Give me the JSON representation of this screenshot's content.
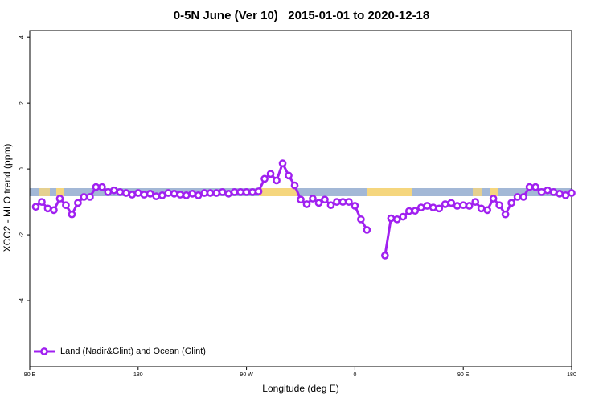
{
  "chart_data": {
    "type": "line",
    "title": "0-5N June (Ver 10)   2015-01-01 to 2020-12-18",
    "xlabel": "Longitude (deg E)",
    "ylabel": "XCO2 - MLO trend (ppm)",
    "xlim": [
      90,
      540
    ],
    "ylim": [
      -6,
      4.2
    ],
    "xticks": [
      {
        "value": 90,
        "label": "90 E"
      },
      180,
      {
        "value": 270,
        "label": "90 W"
      },
      {
        "value": 360,
        "label": "0"
      },
      {
        "value": 450,
        "label": "90 E"
      },
      {
        "value": 540,
        "label": "180"
      }
    ],
    "yticks": [
      -4,
      -2,
      0,
      2,
      4
    ],
    "legend": "bottom-left",
    "x": [
      95,
      100,
      105,
      110,
      115,
      120,
      125,
      130,
      135,
      140,
      145,
      150,
      155,
      160,
      165,
      170,
      175,
      180,
      185,
      190,
      195,
      200,
      205,
      210,
      215,
      220,
      225,
      230,
      235,
      240,
      245,
      250,
      255,
      260,
      265,
      270,
      275,
      280,
      285,
      290,
      295,
      300,
      305,
      310,
      315,
      320,
      325,
      330,
      335,
      340,
      345,
      350,
      355,
      360,
      365,
      370,
      375,
      380,
      385,
      390,
      395,
      400,
      405,
      410,
      415,
      420,
      425,
      430,
      435,
      440,
      445,
      450,
      455,
      460,
      465,
      470,
      475,
      480,
      485,
      490,
      495,
      500,
      505,
      510,
      515,
      520,
      525,
      530,
      535,
      540
    ],
    "series": [
      {
        "name": "Land (Nadir&Glint) and Ocean (Glint)",
        "color": "#a020f0",
        "values": [
          -1.15,
          -1.0,
          -1.2,
          -1.25,
          -0.9,
          -1.1,
          -1.38,
          -1.03,
          -0.85,
          -0.85,
          -0.55,
          -0.55,
          -0.7,
          -0.65,
          -0.7,
          -0.73,
          -0.78,
          -0.73,
          -0.78,
          -0.75,
          -0.83,
          -0.8,
          -0.73,
          -0.75,
          -0.78,
          -0.8,
          -0.75,
          -0.8,
          -0.73,
          -0.73,
          -0.73,
          -0.7,
          -0.75,
          -0.7,
          -0.7,
          -0.7,
          -0.7,
          -0.68,
          -0.3,
          -0.15,
          -0.35,
          0.17,
          -0.2,
          -0.5,
          -0.93,
          -1.07,
          -0.9,
          -1.03,
          -0.93,
          -1.1,
          -1.0,
          -1.0,
          -1.0,
          -1.12,
          -1.53,
          -1.85,
          null,
          null,
          -2.63,
          -1.5,
          -1.53,
          -1.45,
          -1.28,
          -1.27,
          -1.17,
          -1.12,
          -1.17,
          -1.2,
          -1.07,
          -1.03,
          -1.12,
          -1.1,
          -1.12,
          -1.0,
          -1.2,
          -1.25,
          -0.9,
          -1.1,
          -1.38,
          -1.03,
          -0.85,
          -0.85,
          -0.55,
          -0.55,
          -0.7,
          -0.65,
          -0.7,
          -0.75,
          -0.8,
          -0.73
        ]
      }
    ]
  }
}
